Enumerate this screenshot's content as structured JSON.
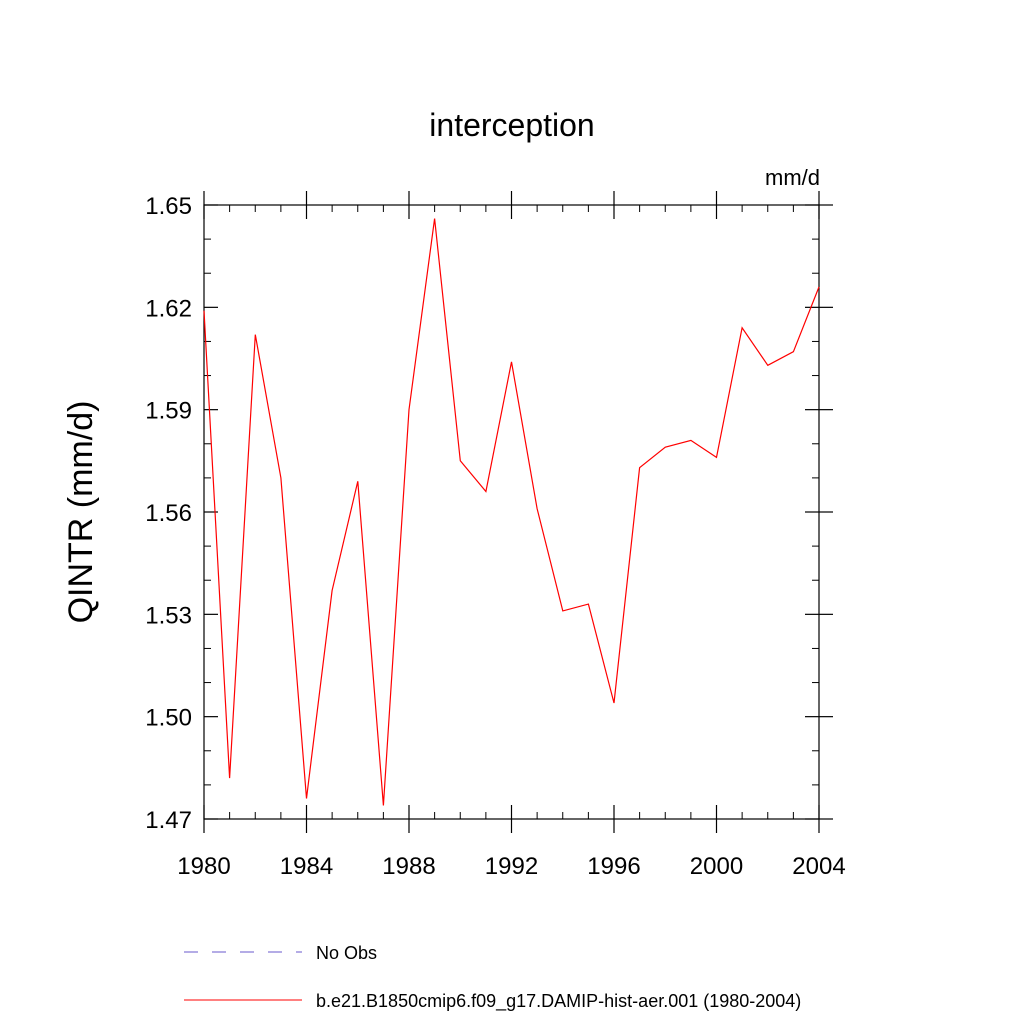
{
  "chart_data": {
    "type": "line",
    "title": "interception",
    "units": "mm/d",
    "ylabel": "QINTR  (mm/d)",
    "xlabel": "",
    "xlim": [
      1980,
      2004
    ],
    "ylim": [
      1.47,
      1.65
    ],
    "x_ticks": [
      1980,
      1984,
      1988,
      1992,
      1996,
      2000,
      2004
    ],
    "x_tick_labels": [
      "1980",
      "1984",
      "1988",
      "1992",
      "1996",
      "2000",
      "2004"
    ],
    "y_ticks": [
      1.47,
      1.5,
      1.53,
      1.56,
      1.59,
      1.62,
      1.65
    ],
    "y_tick_labels": [
      "1.47",
      "1.50",
      "1.53",
      "1.56",
      "1.59",
      "1.62",
      "1.65"
    ],
    "grid": false,
    "legend_position": "bottom",
    "series": [
      {
        "name": "b.e21.B1850cmip6.f09_g17.DAMIP-hist-aer.001 (1980-2004)",
        "color": "#ff0000",
        "style": "solid",
        "x": [
          1980,
          1981,
          1982,
          1983,
          1984,
          1985,
          1986,
          1987,
          1988,
          1989,
          1990,
          1991,
          1992,
          1993,
          1994,
          1995,
          1996,
          1997,
          1998,
          1999,
          2000,
          2001,
          2002,
          2003,
          2004
        ],
        "values": [
          1.619,
          1.482,
          1.612,
          1.57,
          1.476,
          1.537,
          1.569,
          1.474,
          1.59,
          1.646,
          1.575,
          1.566,
          1.604,
          1.561,
          1.531,
          1.533,
          1.504,
          1.573,
          1.579,
          1.581,
          1.576,
          1.614,
          1.603,
          1.607,
          1.626
        ]
      }
    ],
    "legend": [
      {
        "label": "No Obs",
        "color": "#6a5acd",
        "style": "dashed"
      },
      {
        "label": "b.e21.B1850cmip6.f09_g17.DAMIP-hist-aer.001 (1980-2004)",
        "color": "#ff0000",
        "style": "solid"
      }
    ]
  }
}
